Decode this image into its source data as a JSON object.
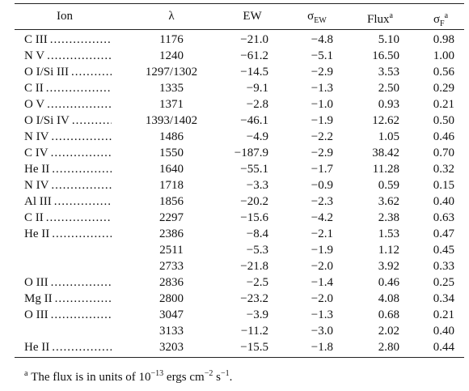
{
  "table": {
    "header": [
      {
        "text": "Ion"
      },
      {
        "text": "λ"
      },
      {
        "text": "EW"
      },
      {
        "text": "σ",
        "sub": "EW"
      },
      {
        "text": "Flux",
        "sup": "a"
      },
      {
        "text": "σ",
        "sub": "F",
        "sup": "a"
      }
    ],
    "rows": [
      [
        "C III",
        "1176",
        "−21.0",
        "−4.8",
        "5.10",
        "0.98"
      ],
      [
        "N V",
        "1240",
        "−61.2",
        "−5.1",
        "16.50",
        "1.00"
      ],
      [
        "O I/Si III",
        "1297/1302",
        "−14.5",
        "−2.9",
        "3.53",
        "0.56"
      ],
      [
        "C II",
        "1335",
        "−9.1",
        "−1.3",
        "2.50",
        "0.29"
      ],
      [
        "O V",
        "1371",
        "−2.8",
        "−1.0",
        "0.93",
        "0.21"
      ],
      [
        "O I/Si IV",
        "1393/1402",
        "−46.1",
        "−1.9",
        "12.62",
        "0.50"
      ],
      [
        "N IV",
        "1486",
        "−4.9",
        "−2.2",
        "1.05",
        "0.46"
      ],
      [
        "C IV",
        "1550",
        "−187.9",
        "−2.9",
        "38.42",
        "0.70"
      ],
      [
        "He II",
        "1640",
        "−55.1",
        "−1.7",
        "11.28",
        "0.32"
      ],
      [
        "N IV",
        "1718",
        "−3.3",
        "−0.9",
        "0.59",
        "0.15"
      ],
      [
        "Al III",
        "1856",
        "−20.2",
        "−2.3",
        "3.62",
        "0.40"
      ],
      [
        "C II",
        "2297",
        "−15.6",
        "−4.2",
        "2.38",
        "0.63"
      ],
      [
        "He II",
        "2386",
        "−8.4",
        "−2.1",
        "1.53",
        "0.47"
      ],
      [
        null,
        "2511",
        "−5.3",
        "−1.9",
        "1.12",
        "0.45"
      ],
      [
        null,
        "2733",
        "−21.8",
        "−2.0",
        "3.92",
        "0.33"
      ],
      [
        "O III",
        "2836",
        "−2.5",
        "−1.4",
        "0.46",
        "0.25"
      ],
      [
        "Mg II",
        "2800",
        "−23.2",
        "−2.0",
        "4.08",
        "0.34"
      ],
      [
        "O III",
        "3047",
        "−3.9",
        "−1.3",
        "0.68",
        "0.21"
      ],
      [
        null,
        "3133",
        "−11.2",
        "−3.0",
        "2.02",
        "0.40"
      ],
      [
        "He II",
        "3203",
        "−15.5",
        "−1.8",
        "2.80",
        "0.44"
      ]
    ],
    "footnote": {
      "mark": "a",
      "parts": [
        {
          "text": "The flux is in units of 10"
        },
        {
          "sup": "−13"
        },
        {
          "text": " ergs cm"
        },
        {
          "sup": "−2"
        },
        {
          "text": " s"
        },
        {
          "sup": "−1"
        },
        {
          "text": "."
        }
      ]
    }
  }
}
